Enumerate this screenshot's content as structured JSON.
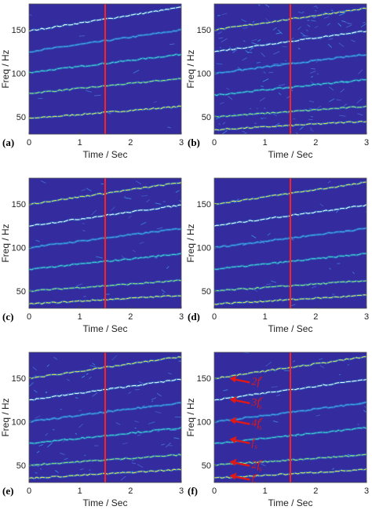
{
  "chart_data": [
    {
      "type": "heatmap",
      "panel_label": "(a)",
      "xlabel": "Time / Sec",
      "ylabel": "Freq / Hz",
      "xlim": [
        0,
        3
      ],
      "ylim": [
        30,
        180
      ],
      "xticks": [
        "0",
        "1",
        "2",
        "3"
      ],
      "yticks": [
        "50",
        "100",
        "150"
      ],
      "marker_time": 1.5,
      "noise_level": 0.05,
      "colormap": "parula",
      "ridges": [
        {
          "f0": 48,
          "f1": 62
        },
        {
          "f0": 77,
          "f1": 94
        },
        {
          "f0": 101,
          "f1": 122
        },
        {
          "f0": 125,
          "f1": 150
        },
        {
          "f0": 149,
          "f1": 176
        }
      ],
      "annotations": []
    },
    {
      "type": "heatmap",
      "panel_label": "(b)",
      "xlabel": "Time / Sec",
      "ylabel": "Freq / Hz",
      "xlim": [
        0,
        3
      ],
      "ylim": [
        30,
        180
      ],
      "xticks": [
        "0",
        "1",
        "2",
        "3"
      ],
      "yticks": [
        "50",
        "100",
        "150"
      ],
      "marker_time": 1.5,
      "noise_level": 0.6,
      "colormap": "parula",
      "ridges": [
        {
          "f0": 35,
          "f1": 45
        },
        {
          "f0": 50,
          "f1": 62
        },
        {
          "f0": 75,
          "f1": 93
        },
        {
          "f0": 100,
          "f1": 122
        },
        {
          "f0": 125,
          "f1": 149
        },
        {
          "f0": 150,
          "f1": 175
        }
      ],
      "annotations": []
    },
    {
      "type": "heatmap",
      "panel_label": "(c)",
      "xlabel": "Time / Sec",
      "ylabel": "Freq / Hz",
      "xlim": [
        0,
        3
      ],
      "ylim": [
        30,
        180
      ],
      "xticks": [
        "0",
        "1",
        "2",
        "3"
      ],
      "yticks": [
        "50",
        "100",
        "150"
      ],
      "marker_time": 1.5,
      "noise_level": 0.15,
      "colormap": "parula",
      "ridges": [
        {
          "f0": 35,
          "f1": 45
        },
        {
          "f0": 50,
          "f1": 62
        },
        {
          "f0": 75,
          "f1": 93
        },
        {
          "f0": 100,
          "f1": 122
        },
        {
          "f0": 125,
          "f1": 149
        },
        {
          "f0": 150,
          "f1": 175
        }
      ],
      "annotations": []
    },
    {
      "type": "heatmap",
      "panel_label": "(d)",
      "xlabel": "Time / Sec",
      "ylabel": "Freq / Hz",
      "xlim": [
        0,
        3
      ],
      "ylim": [
        30,
        180
      ],
      "xticks": [
        "0",
        "1",
        "2",
        "3"
      ],
      "yticks": [
        "50",
        "100",
        "150"
      ],
      "marker_time": 1.5,
      "noise_level": 0.12,
      "colormap": "parula",
      "ridges": [
        {
          "f0": 35,
          "f1": 45
        },
        {
          "f0": 50,
          "f1": 62
        },
        {
          "f0": 75,
          "f1": 93
        },
        {
          "f0": 100,
          "f1": 122
        },
        {
          "f0": 125,
          "f1": 149
        },
        {
          "f0": 150,
          "f1": 175
        }
      ],
      "annotations": []
    },
    {
      "type": "heatmap",
      "panel_label": "(e)",
      "xlabel": "Time / Sec",
      "ylabel": "Freq / Hz",
      "xlim": [
        0,
        3
      ],
      "ylim": [
        30,
        180
      ],
      "xticks": [
        "0",
        "1",
        "2",
        "3"
      ],
      "yticks": [
        "50",
        "100",
        "150"
      ],
      "marker_time": 1.5,
      "noise_level": 0.35,
      "colormap": "parula",
      "ridges": [
        {
          "f0": 35,
          "f1": 45
        },
        {
          "f0": 50,
          "f1": 62
        },
        {
          "f0": 75,
          "f1": 93
        },
        {
          "f0": 100,
          "f1": 122
        },
        {
          "f0": 125,
          "f1": 149
        },
        {
          "f0": 150,
          "f1": 175
        }
      ],
      "annotations": []
    },
    {
      "type": "heatmap",
      "panel_label": "(f)",
      "xlabel": "Time / Sec",
      "ylabel": "Freq / Hz",
      "xlim": [
        0,
        3
      ],
      "ylim": [
        30,
        180
      ],
      "xticks": [
        "0",
        "1",
        "2",
        "3"
      ],
      "yticks": [
        "50",
        "100",
        "150"
      ],
      "marker_time": 1.5,
      "noise_level": 0.1,
      "colormap": "parula",
      "ridges": [
        {
          "f0": 35,
          "f1": 45
        },
        {
          "f0": 50,
          "f1": 62
        },
        {
          "f0": 75,
          "f1": 93
        },
        {
          "f0": 100,
          "f1": 122
        },
        {
          "f0": 125,
          "f1": 149
        },
        {
          "f0": 150,
          "f1": 175
        }
      ],
      "annotations": [
        {
          "text": "2f",
          "sup": "r",
          "sub": "",
          "t": 0.3,
          "f": 148
        },
        {
          "text": "3f",
          "sup": "r",
          "sub": "s",
          "t": 0.3,
          "f": 124
        },
        {
          "text": "4f",
          "sup": "r",
          "sub": "s",
          "t": 0.3,
          "f": 100
        },
        {
          "text": "f",
          "sup": "",
          "sub": "s",
          "t": 0.3,
          "f": 78
        },
        {
          "text": "2f",
          "sup": "r",
          "sub": "s",
          "t": 0.3,
          "f": 52
        },
        {
          "text": "f",
          "sup": "r",
          "sub": "s",
          "t": 0.3,
          "f": 36
        }
      ]
    }
  ],
  "colors": {
    "background": "#332b9e",
    "marker": "#ff2020",
    "annotation": "#e01818"
  }
}
